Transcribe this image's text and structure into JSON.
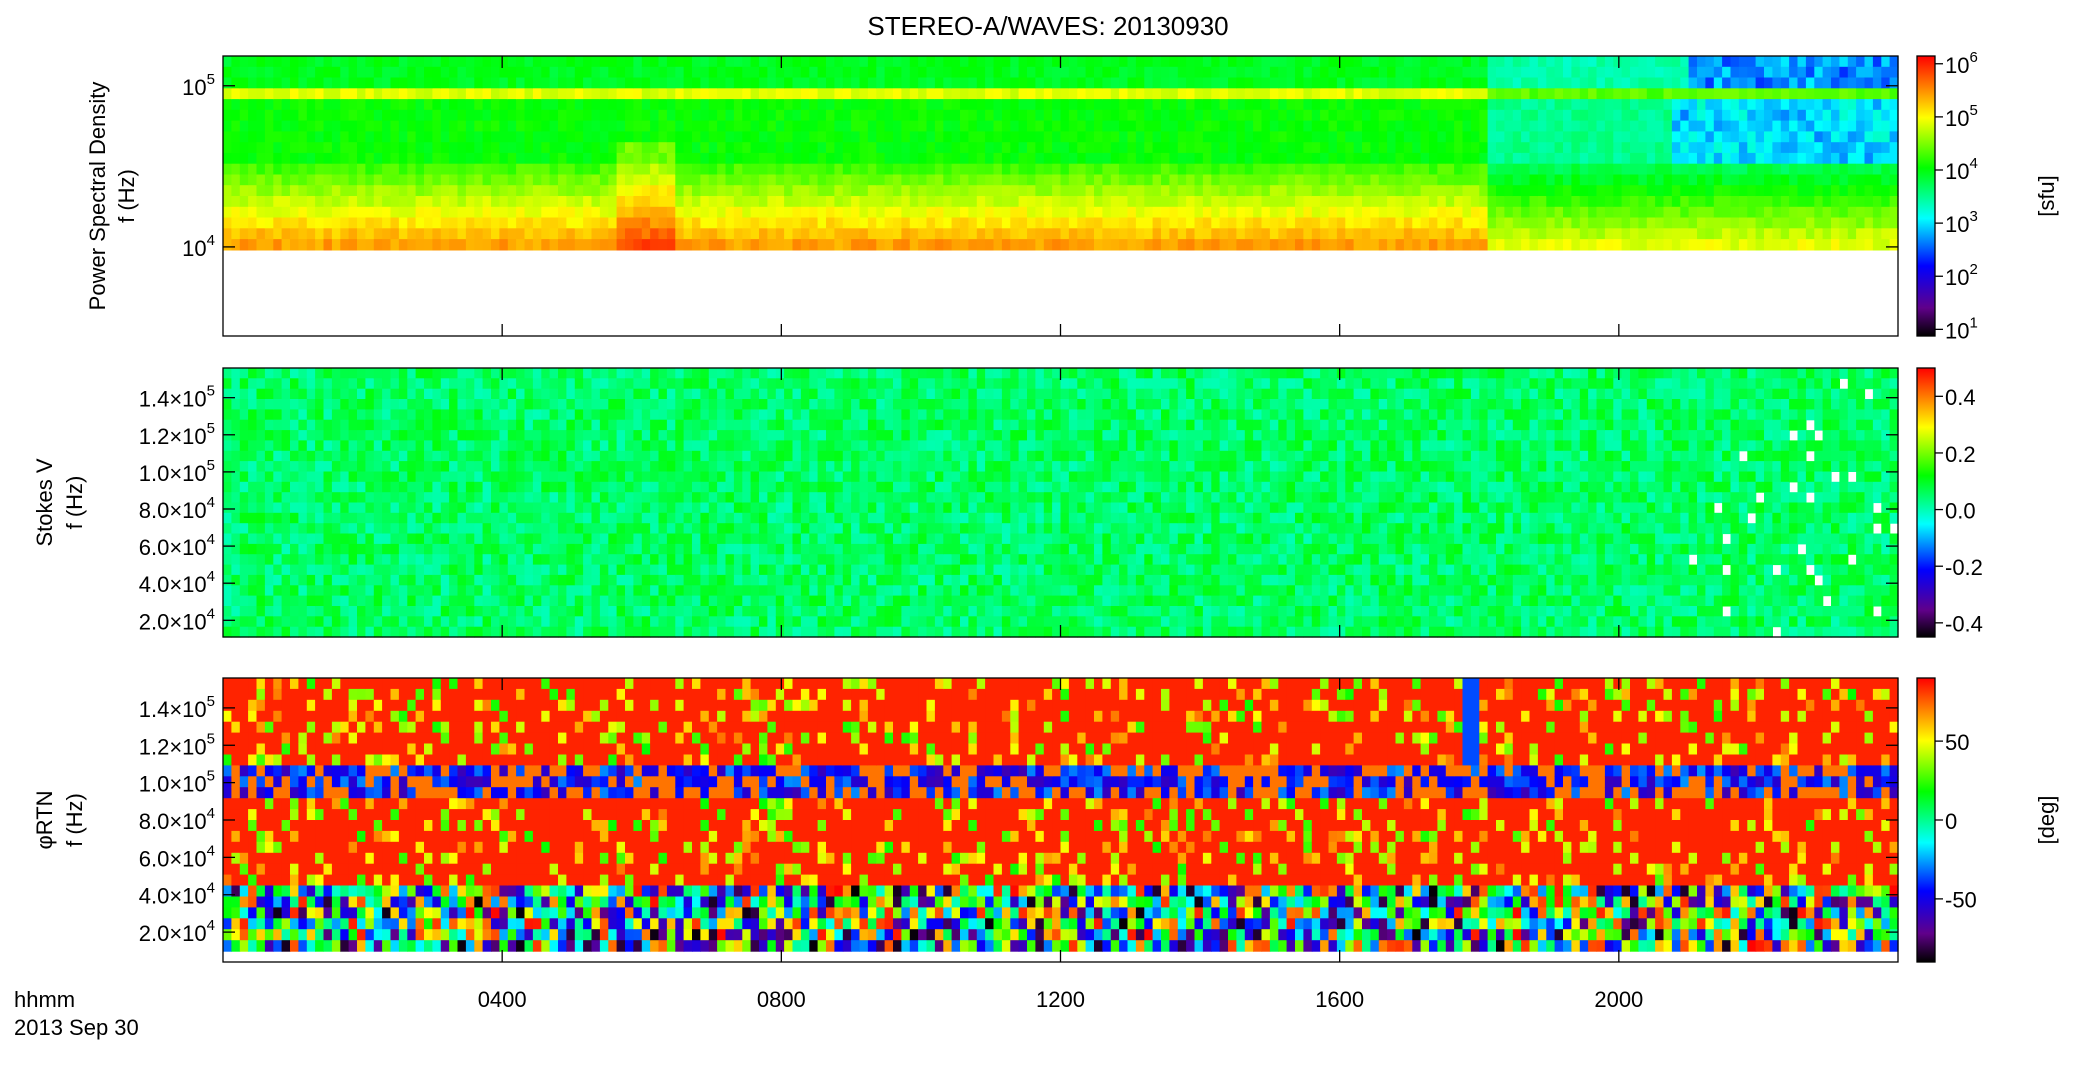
{
  "chart_data": [
    {
      "type": "heatmap",
      "title": "STEREO-A/WAVES: 20130930",
      "ylabel": [
        "Power Spectral Density",
        "f (Hz)"
      ],
      "xlim": [
        0,
        24
      ],
      "ylog": true,
      "ylim": [
        2800,
        153000
      ],
      "yticks": [
        {
          "value": 10000,
          "label": "10^4"
        },
        {
          "value": 100000,
          "label": "10^5"
        }
      ],
      "colorbar": {
        "log": true,
        "clim": [
          7.5,
          1400000
        ],
        "label": "[sfu]",
        "ticks": [
          {
            "value": 10,
            "label": "10^1"
          },
          {
            "value": 100,
            "label": "10^2"
          },
          {
            "value": 1000,
            "label": "10^3"
          },
          {
            "value": 10000,
            "label": "10^4"
          },
          {
            "value": 100000,
            "label": "10^5"
          },
          {
            "value": 1000000,
            "label": "10^6"
          }
        ]
      }
    },
    {
      "type": "heatmap",
      "ylabel": [
        "Stokes V",
        "f (Hz)"
      ],
      "xlim": [
        0,
        24
      ],
      "ylog": false,
      "ylim": [
        11000,
        156000
      ],
      "yticks": [
        {
          "value": 20000,
          "label": "2.0×10^4"
        },
        {
          "value": 40000,
          "label": "4.0×10^4"
        },
        {
          "value": 60000,
          "label": "6.0×10^4"
        },
        {
          "value": 80000,
          "label": "8.0×10^4"
        },
        {
          "value": 100000,
          "label": "1.0×10^5"
        },
        {
          "value": 120000,
          "label": "1.2×10^5"
        },
        {
          "value": 140000,
          "label": "1.4×10^5"
        }
      ],
      "colorbar": {
        "log": false,
        "clim": [
          -0.45,
          0.5
        ],
        "label": null,
        "ticks": [
          -0.4,
          -0.2,
          {
            "value": 0,
            "label": "0.0"
          },
          0.2,
          0.4
        ]
      }
    },
    {
      "type": "heatmap",
      "ylabel": [
        "φRTN",
        "f (Hz)"
      ],
      "xlim": [
        0,
        24
      ],
      "ylog": false,
      "ylim": [
        4000,
        156000
      ],
      "yticks": [
        {
          "value": 20000,
          "label": "2.0×10^4"
        },
        {
          "value": 40000,
          "label": "4.0×10^4"
        },
        {
          "value": 60000,
          "label": "6.0×10^4"
        },
        {
          "value": 80000,
          "label": "8.0×10^4"
        },
        {
          "value": 100000,
          "label": "1.0×10^5"
        },
        {
          "value": 120000,
          "label": "1.2×10^5"
        },
        {
          "value": 140000,
          "label": "1.4×10^5"
        }
      ],
      "xlabel": "hhmm",
      "date_label": "2013 Sep 30",
      "xticks": [
        {
          "value": 4,
          "label": "0400"
        },
        {
          "value": 8,
          "label": "0800"
        },
        {
          "value": 12,
          "label": "1200"
        },
        {
          "value": 16,
          "label": "1600"
        },
        {
          "value": 20,
          "label": "2000"
        }
      ],
      "colorbar": {
        "log": false,
        "clim": [
          -90,
          90
        ],
        "label": "[deg]",
        "ticks": [
          -50,
          0,
          50
        ]
      }
    }
  ]
}
